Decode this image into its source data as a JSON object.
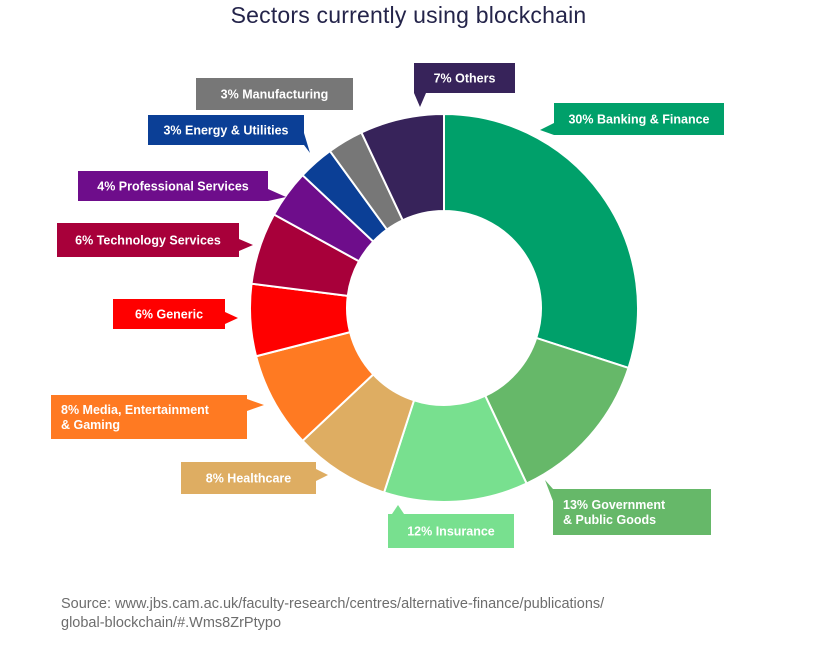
{
  "chart_data": {
    "type": "pie",
    "donut": true,
    "title": "Sectors currently using blockchain",
    "slices": [
      {
        "label": "30% Banking & Finance",
        "lines": [
          "30% Banking & Finance"
        ],
        "value": 30,
        "color": "#00A06A"
      },
      {
        "label": "13% Government & Public Goods",
        "lines": [
          "13% Government",
          "& Public Goods"
        ],
        "value": 13,
        "color": "#66B869"
      },
      {
        "label": "12% Insurance",
        "lines": [
          "12% Insurance"
        ],
        "value": 12,
        "color": "#78E08F"
      },
      {
        "label": "8% Healthcare",
        "lines": [
          "8% Healthcare"
        ],
        "value": 8,
        "color": "#DEAD62"
      },
      {
        "label": "8% Media, Entertainment & Gaming",
        "lines": [
          "8% Media, Entertainment",
          "& Gaming"
        ],
        "value": 8,
        "color": "#FF7A22"
      },
      {
        "label": "6% Generic",
        "lines": [
          "6% Generic"
        ],
        "value": 6,
        "color": "#FF0000"
      },
      {
        "label": "6% Technology Services",
        "lines": [
          "6% Technology Services"
        ],
        "value": 6,
        "color": "#A8003A"
      },
      {
        "label": "4% Professional Services",
        "lines": [
          "4% Professional Services"
        ],
        "value": 4,
        "color": "#6E0D8B"
      },
      {
        "label": "3% Energy & Utilities",
        "lines": [
          "3% Energy & Utilities"
        ],
        "value": 3,
        "color": "#0B3F96"
      },
      {
        "label": "3% Manufacturing",
        "lines": [
          "3% Manufacturing"
        ],
        "value": 3,
        "color": "#777777"
      },
      {
        "label": "7% Others",
        "lines": [
          "7% Others"
        ],
        "value": 7,
        "color": "#37235A"
      }
    ]
  },
  "source": {
    "line1": "Source: www.jbs.cam.ac.uk/faculty-research/centres/alternative-finance/publications/",
    "line2": "global-blockchain/#.Wms8ZrPtypo"
  }
}
